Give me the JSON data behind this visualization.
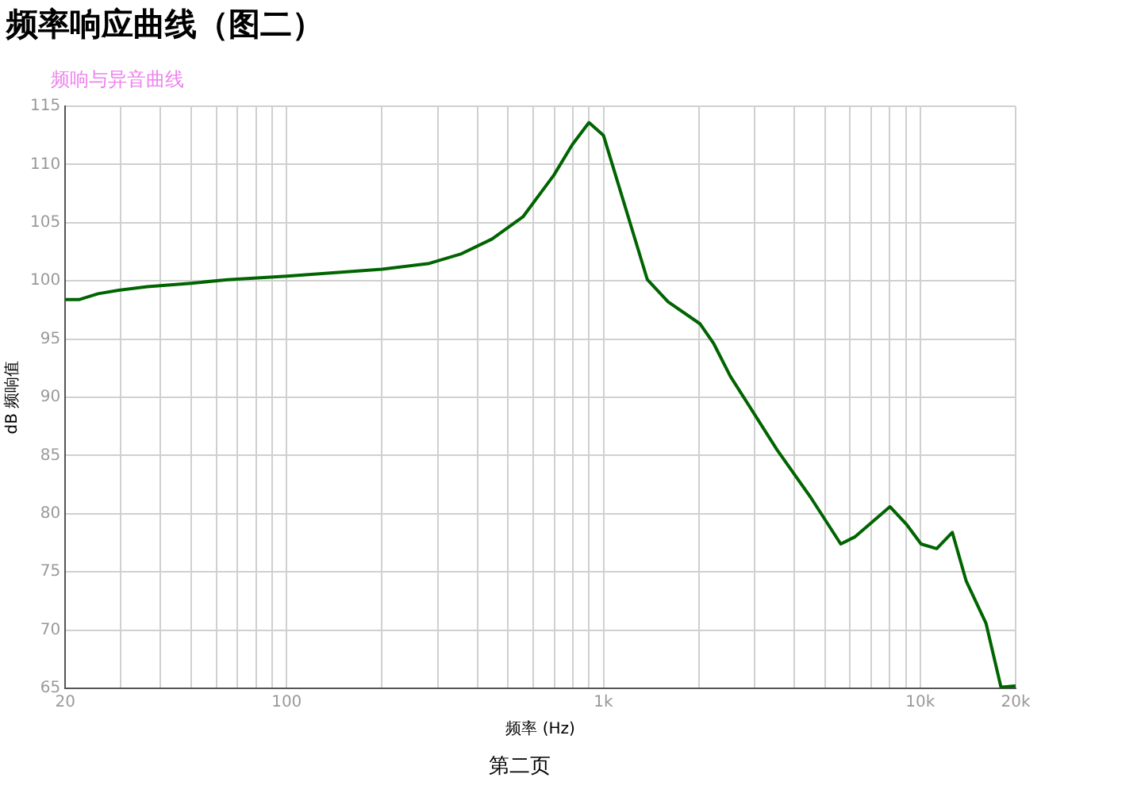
{
  "chart_data": {
    "type": "line",
    "title": "频率响应曲线（图二）",
    "subtitle": "频响与异音曲线",
    "xlabel": "频率 (Hz)",
    "ylabel": "dB 频响值",
    "annotations": [
      "第二页"
    ],
    "log": "x",
    "grid": true,
    "legend": false,
    "marker": "none",
    "line_style": "solid",
    "x": [
      20,
      22.2,
      25.4,
      29.5,
      36.3,
      50,
      65,
      100,
      200,
      282,
      354,
      445,
      557,
      698,
      797,
      900,
      1000,
      1376,
      1600,
      2020,
      2230,
      2516,
      3530,
      4510,
      5610,
      6210,
      8020,
      9040,
      10060,
      11270,
      12620,
      13970,
      16120,
      17980,
      20000
    ],
    "series": [
      {
        "color": "#006400",
        "values": [
          98.4,
          98.4,
          98.9,
          99.2,
          99.5,
          99.8,
          100.1,
          100.4,
          101,
          101.5,
          102.3,
          103.6,
          105.5,
          109.1,
          111.7,
          113.6,
          112.5,
          100.1,
          98.2,
          96.3,
          94.6,
          91.8,
          85.5,
          81.4,
          77.4,
          78,
          80.6,
          79.1,
          77.4,
          77,
          78.4,
          74.2,
          70.6,
          65.1,
          65.2
        ]
      }
    ],
    "xlim": [
      20,
      20000
    ],
    "ylim": [
      65,
      115
    ],
    "xticks": [
      20,
      {
        "value": 30,
        "label": null
      },
      {
        "value": 40,
        "label": null
      },
      {
        "value": 50,
        "label": null
      },
      {
        "value": 60,
        "label": null
      },
      {
        "value": 70,
        "label": null
      },
      {
        "value": 80,
        "label": null
      },
      {
        "value": 90,
        "label": null
      },
      100,
      {
        "value": 200,
        "label": null
      },
      {
        "value": 300,
        "label": null
      },
      {
        "value": 400,
        "label": null
      },
      {
        "value": 500,
        "label": null
      },
      {
        "value": 600,
        "label": null
      },
      {
        "value": 700,
        "label": null
      },
      {
        "value": 800,
        "label": null
      },
      {
        "value": 900,
        "label": null
      },
      {
        "value": 1000,
        "label": "1k"
      },
      {
        "value": 2000,
        "label": null
      },
      {
        "value": 3000,
        "label": null
      },
      {
        "value": 4000,
        "label": null
      },
      {
        "value": 5000,
        "label": null
      },
      {
        "value": 6000,
        "label": null
      },
      {
        "value": 7000,
        "label": null
      },
      {
        "value": 8000,
        "label": null
      },
      {
        "value": 9000,
        "label": null
      },
      {
        "value": 10000,
        "label": "10k"
      },
      {
        "value": 20000,
        "label": "20k"
      }
    ],
    "yticks": [
      65,
      70,
      75,
      80,
      85,
      90,
      95,
      100,
      105,
      110,
      115
    ]
  }
}
